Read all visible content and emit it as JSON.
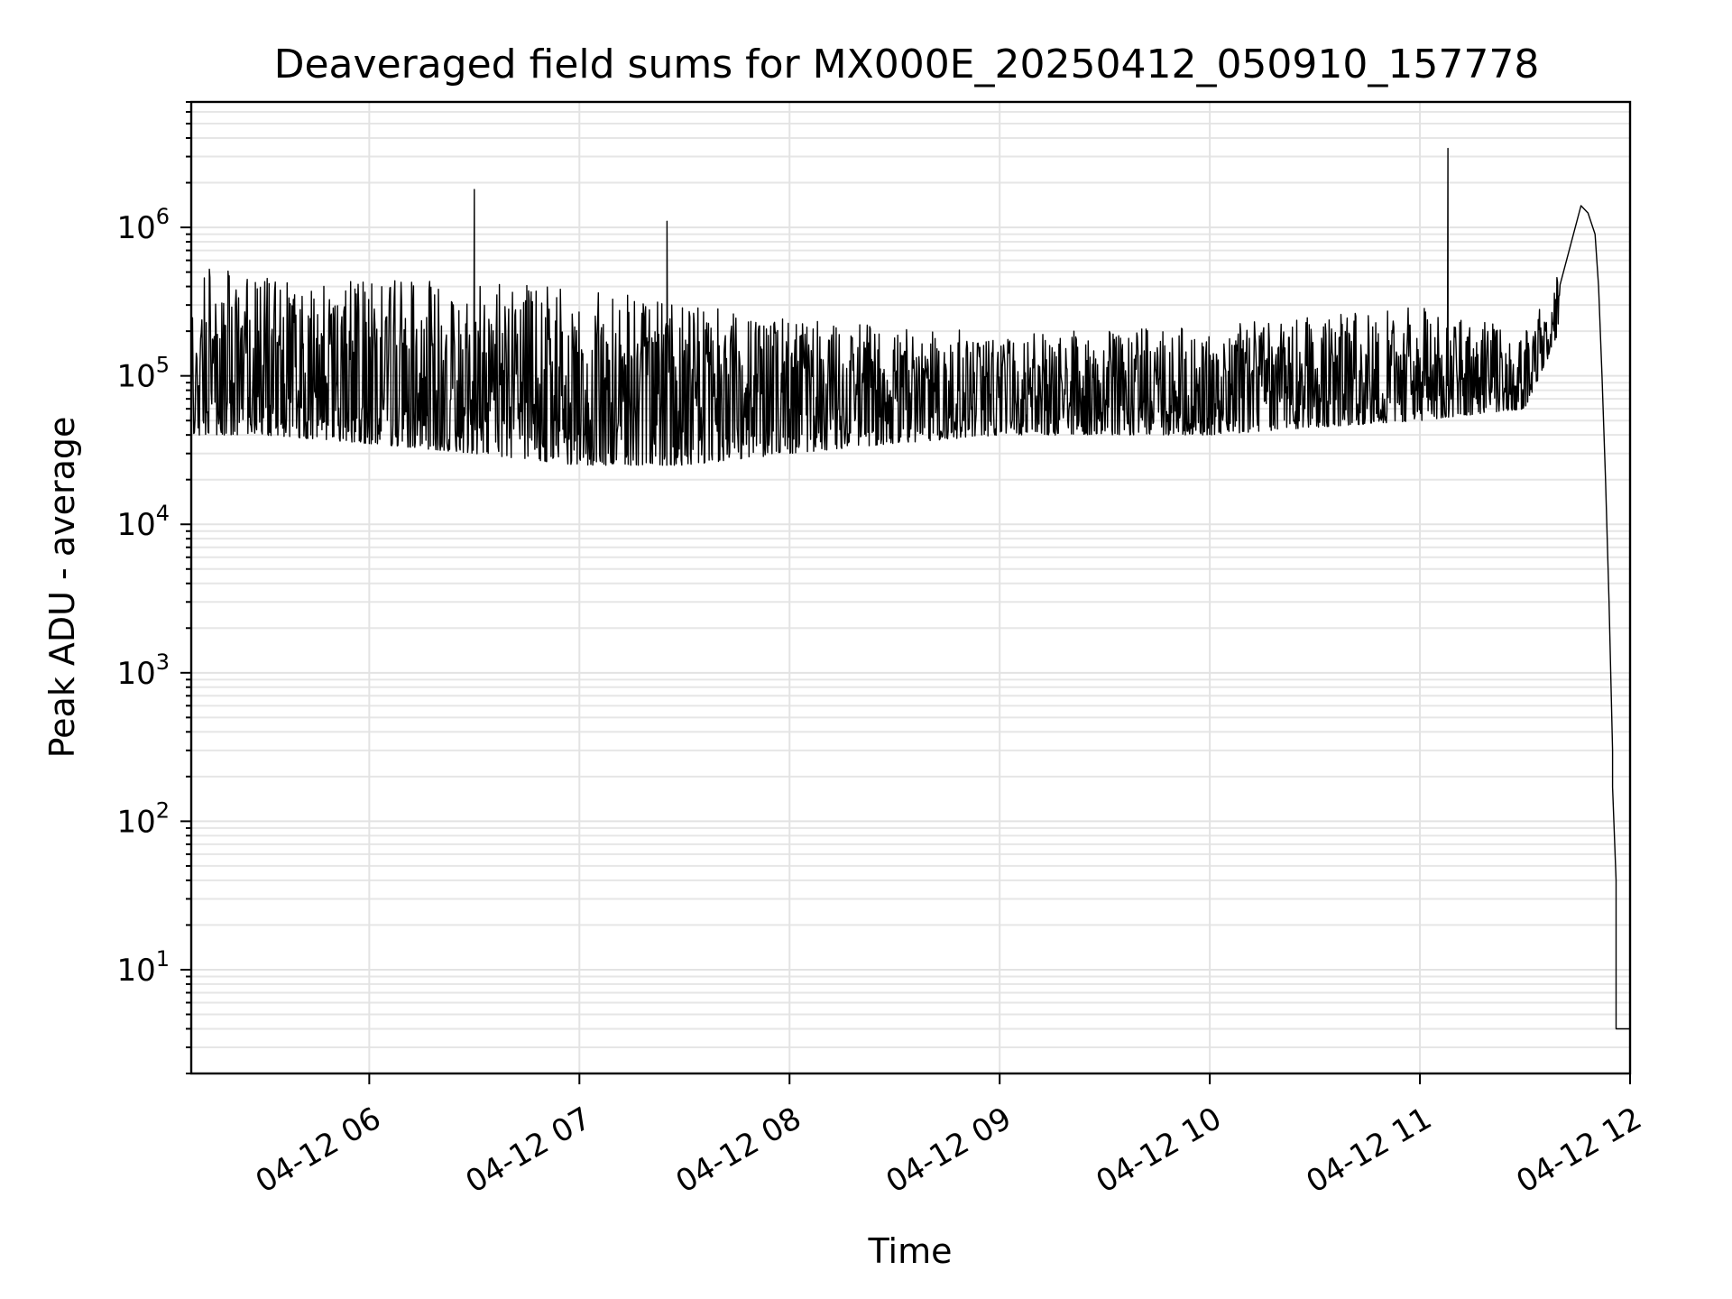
{
  "chart_data": {
    "type": "line",
    "title": "Deaveraged field sums for MX000E_20250412_050910_157778",
    "xlabel": "Time",
    "ylabel": "Peak ADU - average",
    "yscale": "log",
    "xlim": [
      "2025-04-12 05:09:10",
      "2025-04-12 12:00:00"
    ],
    "ylim": [
      2,
      7000000
    ],
    "x_ticks": [
      {
        "value": "2025-04-12 06:00",
        "label": "04-12 06"
      },
      {
        "value": "2025-04-12 07:00",
        "label": "04-12 07"
      },
      {
        "value": "2025-04-12 08:00",
        "label": "04-12 08"
      },
      {
        "value": "2025-04-12 09:00",
        "label": "04-12 09"
      },
      {
        "value": "2025-04-12 10:00",
        "label": "04-12 10"
      },
      {
        "value": "2025-04-12 11:00",
        "label": "04-12 11"
      },
      {
        "value": "2025-04-12 12:00",
        "label": "04-12 12"
      }
    ],
    "y_ticks": [
      {
        "value": 10,
        "base": "10",
        "exp": "1"
      },
      {
        "value": 100,
        "base": "10",
        "exp": "2"
      },
      {
        "value": 1000,
        "base": "10",
        "exp": "3"
      },
      {
        "value": 10000,
        "base": "10",
        "exp": "4"
      },
      {
        "value": 100000,
        "base": "10",
        "exp": "5"
      },
      {
        "value": 1000000,
        "base": "10",
        "exp": "6"
      }
    ],
    "grid": true,
    "line_color": "#000000",
    "envelope": [
      {
        "t": "2025-04-12 05:09",
        "low": 40000,
        "high": 600000
      },
      {
        "t": "2025-04-12 05:30",
        "low": 40000,
        "high": 500000
      },
      {
        "t": "2025-04-12 06:00",
        "low": 35000,
        "high": 450000
      },
      {
        "t": "2025-04-12 06:30",
        "low": 30000,
        "high": 450000
      },
      {
        "t": "2025-04-12 07:00",
        "low": 25000,
        "high": 400000
      },
      {
        "t": "2025-04-12 07:30",
        "low": 25000,
        "high": 300000
      },
      {
        "t": "2025-04-12 08:00",
        "low": 30000,
        "high": 250000
      },
      {
        "t": "2025-04-12 08:30",
        "low": 35000,
        "high": 220000
      },
      {
        "t": "2025-04-12 09:00",
        "low": 40000,
        "high": 200000
      },
      {
        "t": "2025-04-12 09:30",
        "low": 40000,
        "high": 200000
      },
      {
        "t": "2025-04-12 10:00",
        "low": 40000,
        "high": 220000
      },
      {
        "t": "2025-04-12 10:30",
        "low": 45000,
        "high": 250000
      },
      {
        "t": "2025-04-12 11:00",
        "low": 50000,
        "high": 300000
      },
      {
        "t": "2025-04-12 11:30",
        "low": 60000,
        "high": 200000
      },
      {
        "t": "2025-04-12 11:40",
        "low": 200000,
        "high": 500000
      }
    ],
    "points": [
      {
        "t": "2025-04-12 06:30",
        "y": 1800000
      },
      {
        "t": "2025-04-12 07:25",
        "y": 1100000
      },
      {
        "t": "2025-04-12 11:08",
        "y": 3400000
      },
      {
        "t": "2025-04-12 11:46",
        "y": 1400000
      },
      {
        "t": "2025-04-12 11:48",
        "y": 1250000
      },
      {
        "t": "2025-04-12 11:50",
        "y": 900000
      },
      {
        "t": "2025-04-12 11:51",
        "y": 400000
      },
      {
        "t": "2025-04-12 11:52",
        "y": 100000
      },
      {
        "t": "2025-04-12 11:53",
        "y": 20000
      },
      {
        "t": "2025-04-12 11:54",
        "y": 3000
      },
      {
        "t": "2025-04-12 11:55",
        "y": 300
      },
      {
        "t": "2025-04-12 11:55",
        "y": 170
      },
      {
        "t": "2025-04-12 11:56",
        "y": 40
      },
      {
        "t": "2025-04-12 11:56",
        "y": 4
      },
      {
        "t": "2025-04-12 12:00",
        "y": 4
      }
    ]
  }
}
